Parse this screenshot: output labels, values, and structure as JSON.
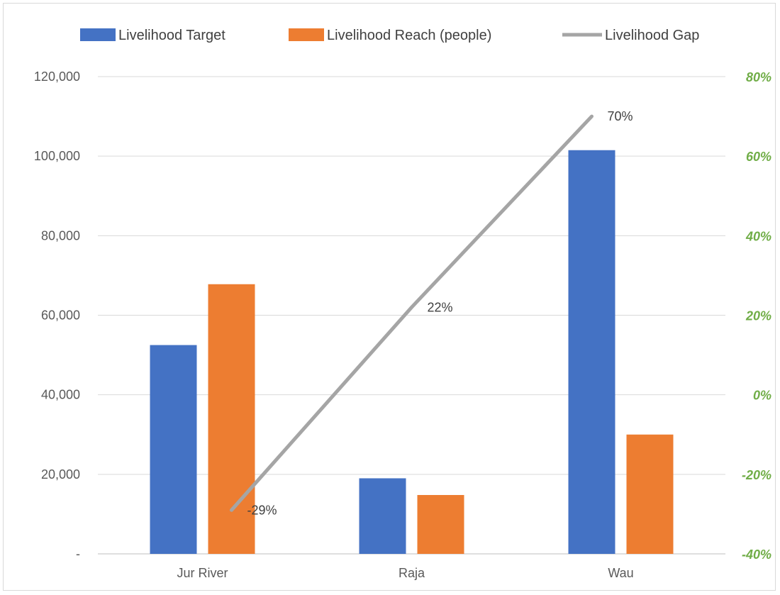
{
  "chart_data": {
    "type": "bar",
    "categories": [
      "Jur River",
      "Raja",
      "Wau"
    ],
    "series": [
      {
        "name": "Livelihood Target",
        "type": "bar",
        "axis": "left",
        "color": "#4472c4",
        "values": [
          52500,
          19000,
          101500
        ]
      },
      {
        "name": "Livelihood Reach (people)",
        "type": "bar",
        "axis": "left",
        "color": "#ed7d31",
        "values": [
          67800,
          14800,
          30000
        ]
      },
      {
        "name": "Livelihood Gap",
        "type": "line",
        "axis": "right",
        "color": "#a5a5a5",
        "values": [
          -0.29,
          0.22,
          0.7
        ],
        "labels": [
          "-29%",
          "22%",
          "70%"
        ]
      }
    ],
    "y_left": {
      "range": [
        0,
        120000
      ],
      "ticks": [
        0,
        20000,
        40000,
        60000,
        80000,
        100000,
        120000
      ],
      "tick_labels": [
        "-",
        "20,000",
        "40,000",
        "60,000",
        "80,000",
        "100,000",
        "120,000"
      ],
      "color": "#595959"
    },
    "y_right": {
      "range": [
        -0.4,
        0.8
      ],
      "ticks": [
        -0.4,
        -0.2,
        0,
        0.2,
        0.4,
        0.6,
        0.8
      ],
      "tick_labels": [
        "-40%",
        "-20%",
        "0%",
        "20%",
        "40%",
        "60%",
        "80%"
      ],
      "color": "#70ad47"
    },
    "grid": true,
    "legend_position": "top",
    "title": "",
    "xlabel": "",
    "ylabel": ""
  }
}
